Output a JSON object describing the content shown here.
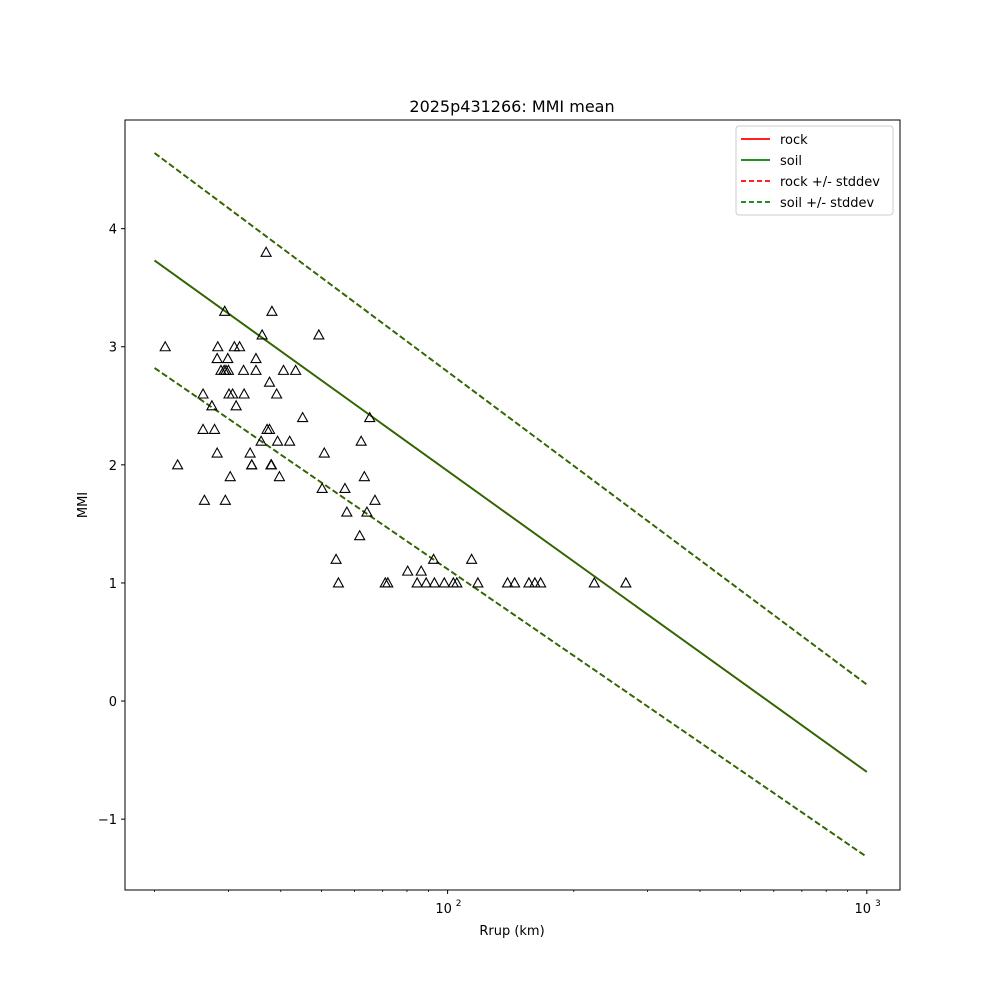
{
  "chart_data": {
    "type": "scatter",
    "title": "2025p431266: MMI mean",
    "xlabel": "Rrup (km)",
    "ylabel": "MMI",
    "x_scale": "log",
    "xlim": [
      17,
      1200
    ],
    "ylim": [
      -1.6,
      4.92
    ],
    "x_ticks": [
      {
        "value": 100,
        "base": "10",
        "exp": "2"
      },
      {
        "value": 1000,
        "base": "10",
        "exp": "3"
      }
    ],
    "y_ticks": [
      {
        "value": -1,
        "label": "−1"
      },
      {
        "value": 0,
        "label": "0"
      },
      {
        "value": 1,
        "label": "1"
      },
      {
        "value": 2,
        "label": "2"
      },
      {
        "value": 3,
        "label": "3"
      },
      {
        "value": 4,
        "label": "4"
      }
    ],
    "grid": false,
    "legend_position": "top-right",
    "legend": [
      {
        "label": "rock",
        "color": "#ff0000",
        "dashed": false
      },
      {
        "label": "soil",
        "color": "#008000",
        "dashed": false
      },
      {
        "label": "rock +/- stddev",
        "color": "#ff0000",
        "dashed": true
      },
      {
        "label": "soil +/- stddev",
        "color": "#008000",
        "dashed": true
      }
    ],
    "line_color": "#336600",
    "series": [
      {
        "name": "rock",
        "style": "solid",
        "color": "#ff0000",
        "x": [
          20,
          1000
        ],
        "y": [
          3.73,
          -0.6
        ]
      },
      {
        "name": "soil",
        "style": "solid",
        "color": "#008000",
        "x": [
          20,
          1000
        ],
        "y": [
          3.73,
          -0.6
        ]
      },
      {
        "name": "rock +/- stddev",
        "style": "dashed",
        "color": "#ff0000",
        "x": [
          20,
          1000
        ],
        "y": [
          4.64,
          0.14
        ]
      },
      {
        "name": "rock +/- stddev",
        "style": "dashed",
        "color": "#ff0000",
        "x": [
          20,
          1000
        ],
        "y": [
          2.82,
          -1.32
        ]
      },
      {
        "name": "soil +/- stddev",
        "style": "dashed",
        "color": "#008000",
        "x": [
          20,
          1000
        ],
        "y": [
          4.64,
          0.14
        ]
      },
      {
        "name": "soil +/- stddev",
        "style": "dashed",
        "color": "#008000",
        "x": [
          20,
          1000
        ],
        "y": [
          2.82,
          -1.32
        ]
      }
    ],
    "points": [
      [
        21.2,
        3.0
      ],
      [
        22.7,
        2.0
      ],
      [
        26.1,
        2.6
      ],
      [
        26.1,
        2.3
      ],
      [
        26.3,
        1.7
      ],
      [
        27.4,
        2.5
      ],
      [
        27.8,
        2.3
      ],
      [
        28.2,
        2.9
      ],
      [
        28.3,
        3.0
      ],
      [
        28.2,
        2.1
      ],
      [
        28.8,
        2.8
      ],
      [
        29.3,
        2.8
      ],
      [
        29.4,
        3.3
      ],
      [
        29.6,
        2.8
      ],
      [
        29.5,
        1.7
      ],
      [
        29.9,
        2.9
      ],
      [
        30.0,
        2.8
      ],
      [
        30.1,
        2.6
      ],
      [
        30.3,
        1.9
      ],
      [
        30.7,
        2.6
      ],
      [
        31.0,
        3.0
      ],
      [
        31.3,
        2.5
      ],
      [
        31.9,
        3.0
      ],
      [
        32.6,
        2.8
      ],
      [
        32.7,
        2.6
      ],
      [
        33.8,
        2.1
      ],
      [
        34.1,
        2.0
      ],
      [
        34.1,
        2.0
      ],
      [
        34.9,
        2.9
      ],
      [
        34.9,
        2.8
      ],
      [
        35.9,
        2.2
      ],
      [
        36.1,
        3.1
      ],
      [
        36.9,
        3.8
      ],
      [
        37.1,
        2.3
      ],
      [
        37.6,
        2.3
      ],
      [
        37.6,
        2.7
      ],
      [
        37.9,
        2.0
      ],
      [
        38.0,
        2.0
      ],
      [
        38.1,
        3.3
      ],
      [
        39.1,
        2.6
      ],
      [
        39.3,
        2.2
      ],
      [
        39.7,
        1.9
      ],
      [
        40.6,
        2.8
      ],
      [
        42.0,
        2.2
      ],
      [
        43.4,
        2.8
      ],
      [
        45.1,
        2.4
      ],
      [
        49.3,
        3.1
      ],
      [
        50.2,
        1.8
      ],
      [
        50.8,
        2.1
      ],
      [
        54.2,
        1.2
      ],
      [
        54.9,
        1.0
      ],
      [
        56.9,
        1.8
      ],
      [
        57.5,
        1.6
      ],
      [
        61.7,
        1.4
      ],
      [
        62.2,
        2.2
      ],
      [
        63.3,
        1.9
      ],
      [
        64.2,
        1.6
      ],
      [
        65.2,
        2.4
      ],
      [
        67.1,
        1.7
      ],
      [
        71.0,
        1.0
      ],
      [
        72.0,
        1.0
      ],
      [
        80.3,
        1.1
      ],
      [
        84.6,
        1.0
      ],
      [
        86.5,
        1.1
      ],
      [
        88.9,
        1.0
      ],
      [
        92.6,
        1.2
      ],
      [
        93.0,
        1.0
      ],
      [
        98.2,
        1.0
      ],
      [
        103.2,
        1.0
      ],
      [
        105.2,
        1.0
      ],
      [
        114.1,
        1.2
      ],
      [
        118.1,
        1.0
      ],
      [
        139.0,
        1.0
      ],
      [
        144.5,
        1.0
      ],
      [
        156.3,
        1.0
      ],
      [
        161.5,
        1.0
      ],
      [
        166.7,
        1.0
      ],
      [
        223.8,
        1.0
      ],
      [
        266.2,
        1.0
      ]
    ]
  }
}
